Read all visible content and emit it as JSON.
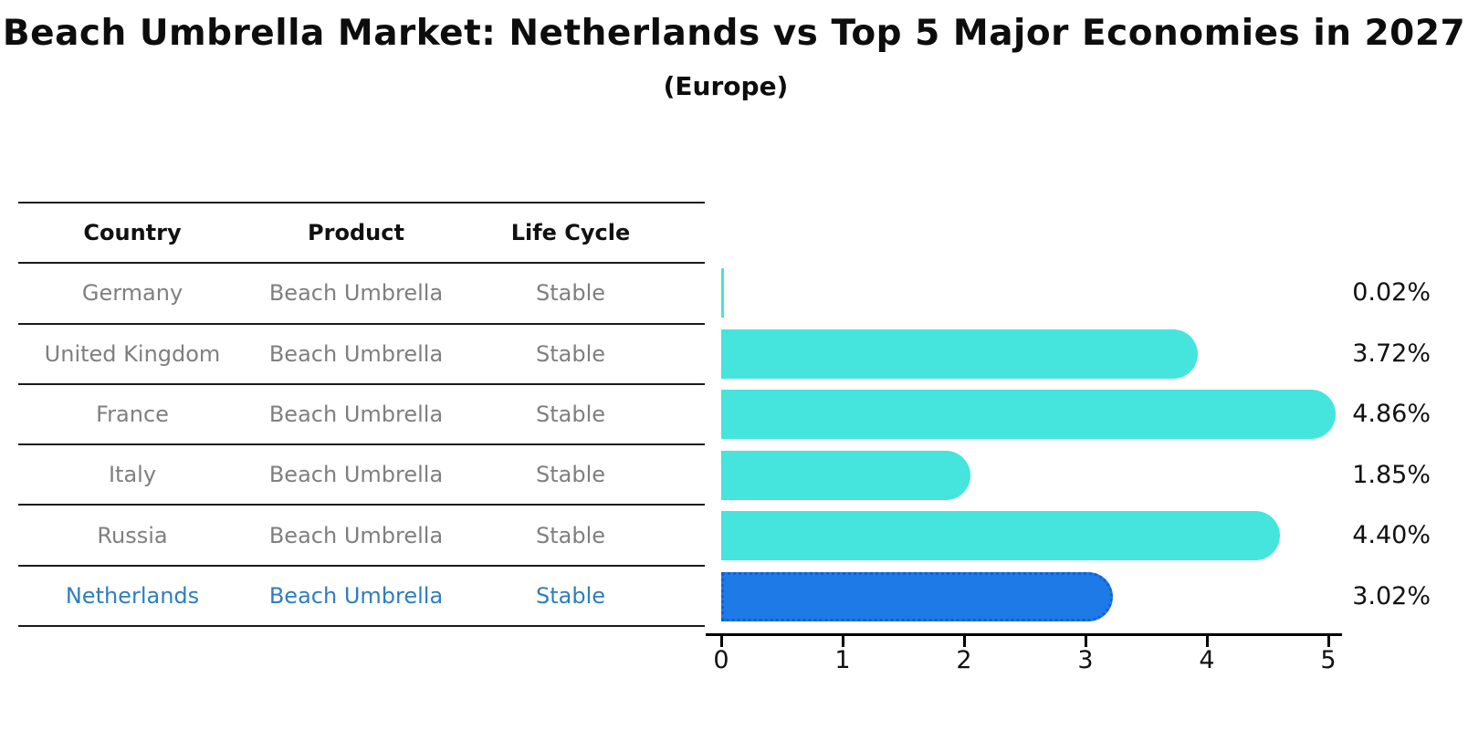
{
  "title": "Beach Umbrella Market: Netherlands vs Top 5 Major Economies in 2027",
  "subtitle": "(Europe)",
  "table": {
    "headers": {
      "country": "Country",
      "product": "Product",
      "life_cycle": "Life Cycle"
    },
    "rows": [
      {
        "country": "Germany",
        "product": "Beach Umbrella",
        "life_cycle": "Stable",
        "highlight": false
      },
      {
        "country": "United Kingdom",
        "product": "Beach Umbrella",
        "life_cycle": "Stable",
        "highlight": false
      },
      {
        "country": "France",
        "product": "Beach Umbrella",
        "life_cycle": "Stable",
        "highlight": false
      },
      {
        "country": "Italy",
        "product": "Beach Umbrella",
        "life_cycle": "Stable",
        "highlight": false
      },
      {
        "country": "Russia",
        "product": "Beach Umbrella",
        "life_cycle": "Stable",
        "highlight": false
      },
      {
        "country": "Netherlands",
        "product": "Beach Umbrella",
        "life_cycle": "Stable",
        "highlight": true
      }
    ]
  },
  "chart_data": {
    "type": "bar",
    "orientation": "horizontal",
    "title": "Beach Umbrella Market: Netherlands vs Top 5 Major Economies in 2027",
    "subtitle": "(Europe)",
    "categories": [
      "Germany",
      "United Kingdom",
      "France",
      "Italy",
      "Russia",
      "Netherlands"
    ],
    "values": [
      0.02,
      3.72,
      4.86,
      1.85,
      4.4,
      3.02
    ],
    "value_labels": [
      "0.02%",
      "3.72%",
      "4.86%",
      "1.85%",
      "4.40%",
      "3.02%"
    ],
    "xlabel": "",
    "ylabel": "",
    "xlim": [
      0,
      5
    ],
    "x_ticks": [
      0,
      1,
      2,
      3,
      4,
      5
    ],
    "grid": false,
    "legend": false,
    "highlight_index": 5,
    "colors": {
      "bar": "#45e4dd",
      "highlight_bar": "#1e7ae6",
      "highlight_border": "#155fd0",
      "highlight_text": "#2e7ebf",
      "row_text": "#7f7f7f",
      "header_text": "#111111",
      "axis": "#000000"
    }
  }
}
